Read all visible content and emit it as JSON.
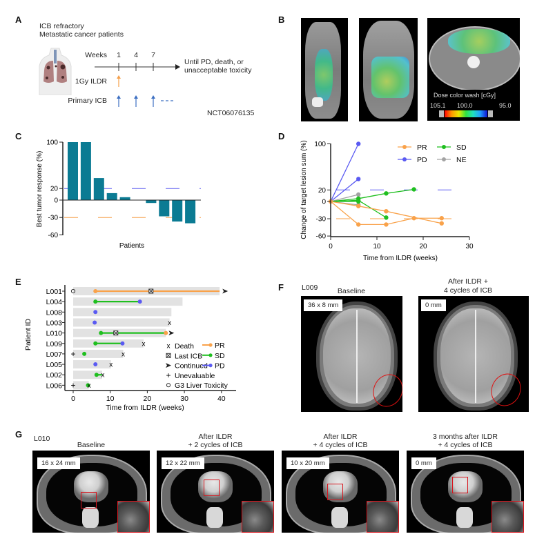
{
  "panels": {
    "A": {
      "label": "A",
      "title_lines": [
        "ICB refractory",
        "Metastatic cancer patients"
      ],
      "weeks_label": "Weeks",
      "week_ticks": [
        "1",
        "4",
        "7"
      ],
      "endpoint_lines": [
        "Until PD, death, or",
        "unacceptable toxicity"
      ],
      "ildr_label": "1Gy ILDR",
      "icb_label": "Primary ICB",
      "trial_id": "NCT06076135",
      "colors": {
        "ildr": "#f5a04a",
        "icb": "#3c6fc2"
      }
    },
    "B": {
      "label": "B",
      "dose_legend_title": "Dose color wash [cGy]",
      "dose_ticks": [
        "105.1",
        "100.0",
        "95.0"
      ]
    },
    "C": {
      "label": "C"
    },
    "D": {
      "label": "D"
    },
    "E": {
      "label": "E"
    },
    "F": {
      "label": "F",
      "patient": "L009",
      "images": [
        {
          "title_lines": [
            "Baseline"
          ],
          "measurement": "36 x 8 mm"
        },
        {
          "title_lines": [
            "After ILDR +",
            "4 cycles of ICB"
          ],
          "measurement": "0 mm"
        }
      ]
    },
    "G": {
      "label": "G",
      "patient": "L010",
      "images": [
        {
          "title_lines": [
            "",
            "Baseline"
          ],
          "measurement": "16 x 24 mm"
        },
        {
          "title_lines": [
            "After ILDR",
            "+ 2 cycles of ICB"
          ],
          "measurement": "12 x 22 mm"
        },
        {
          "title_lines": [
            "After ILDR",
            "+ 4 cycles of ICB"
          ],
          "measurement": "10 x 20 mm"
        },
        {
          "title_lines": [
            "3 months after ILDR",
            "+ 4 cycles of ICB"
          ],
          "measurement": "0 mm"
        }
      ]
    }
  },
  "chart_data": [
    {
      "id": "C",
      "type": "bar",
      "title": "",
      "xlabel": "Patients",
      "ylabel": "Best tumor response (%)",
      "ylim": [
        -60,
        100
      ],
      "yticks": [
        100,
        20,
        0,
        -30,
        -60
      ],
      "values": [
        100,
        100,
        38,
        12,
        5,
        0,
        -5,
        -28,
        -37,
        -40
      ],
      "bar_color": "#0b7b93",
      "reference_lines": [
        {
          "value": 20,
          "color": "#5a5af0"
        },
        {
          "value": -30,
          "color": "#f5a04a"
        }
      ],
      "grid": false
    },
    {
      "id": "D",
      "type": "line",
      "title": "",
      "xlabel": "Time from ILDR (weeks)",
      "ylabel": "Change of target lesion sum (%)",
      "xlim": [
        0,
        30
      ],
      "ylim": [
        -60,
        100
      ],
      "xticks": [
        0,
        10,
        20,
        30
      ],
      "yticks": [
        100,
        20,
        0,
        -30,
        -60
      ],
      "legend_position": "top-right",
      "legend": [
        {
          "name": "PR",
          "color": "#f9a24a"
        },
        {
          "name": "SD",
          "color": "#1fbf1f"
        },
        {
          "name": "PD",
          "color": "#5a5af2"
        },
        {
          "name": "NE",
          "color": "#a3a3a3"
        }
      ],
      "reference_lines": [
        {
          "value": 20,
          "color": "#5a5af2"
        },
        {
          "value": -30,
          "color": "#f9a24a"
        }
      ],
      "series": [
        {
          "name": "PD",
          "x": [
            0,
            6
          ],
          "y": [
            0,
            100
          ]
        },
        {
          "name": "PD",
          "x": [
            0,
            6
          ],
          "y": [
            0,
            39
          ]
        },
        {
          "name": "NE",
          "x": [
            0,
            6
          ],
          "y": [
            0,
            12
          ]
        },
        {
          "name": "NE",
          "x": [
            0,
            6
          ],
          "y": [
            0,
            -6
          ]
        },
        {
          "name": "SD",
          "x": [
            0,
            6,
            12,
            18
          ],
          "y": [
            0,
            5,
            14,
            21
          ]
        },
        {
          "name": "SD",
          "x": [
            0,
            6,
            12
          ],
          "y": [
            0,
            2,
            -28
          ]
        },
        {
          "name": "SD",
          "x": [
            0,
            6
          ],
          "y": [
            0,
            0
          ]
        },
        {
          "name": "PR",
          "x": [
            0,
            6,
            12,
            24
          ],
          "y": [
            0,
            -8,
            -17,
            -38
          ]
        },
        {
          "name": "PR",
          "x": [
            0,
            6,
            12,
            18,
            24
          ],
          "y": [
            0,
            -40,
            -40,
            -29,
            -29
          ]
        }
      ]
    },
    {
      "id": "E",
      "type": "bar",
      "orientation": "horizontal",
      "title": "",
      "xlabel": "Time from ILDR (weeks)",
      "ylabel": "Patient ID",
      "xlim": [
        0,
        42
      ],
      "xticks": [
        0,
        10,
        20,
        30,
        40
      ],
      "response_colors": {
        "PR": "#f9a24a",
        "SD": "#1fbf1f",
        "PD": "#5a5af2"
      },
      "legend_symbols": [
        {
          "type": "death",
          "label": "Death"
        },
        {
          "type": "last_icb",
          "label": "Last ICB"
        },
        {
          "type": "continued",
          "label": "Continued"
        },
        {
          "type": "unevaluable",
          "label": "Unevaluable"
        },
        {
          "type": "g3_liver_toxicity",
          "label": "G3 Liver Toxicity"
        }
      ],
      "legend_responses": [
        "PR",
        "SD",
        "PD"
      ],
      "patients": [
        {
          "id": "L001",
          "duration": 39.5,
          "segments": [
            {
              "from": 6,
              "to": 39.5,
              "response": "PR"
            }
          ],
          "dots": [
            {
              "t": 6,
              "response": "PR"
            }
          ],
          "events": [
            {
              "type": "g3_liver_toxicity",
              "t": 0
            },
            {
              "type": "last_icb",
              "t": 21
            },
            {
              "type": "continued",
              "t": 41
            }
          ]
        },
        {
          "id": "L004",
          "duration": 29.5,
          "segments": [
            {
              "from": 6,
              "to": 18,
              "response": "SD"
            }
          ],
          "dots": [
            {
              "t": 6,
              "response": "SD"
            },
            {
              "t": 18,
              "response": "PD"
            }
          ],
          "events": []
        },
        {
          "id": "L008",
          "duration": 26.5,
          "segments": [],
          "dots": [
            {
              "t": 6,
              "response": "PD"
            }
          ],
          "events": []
        },
        {
          "id": "L003",
          "duration": 26,
          "segments": [],
          "dots": [
            {
              "t": 5.8,
              "response": "PD"
            }
          ],
          "events": [
            {
              "type": "death",
              "t": 26
            }
          ]
        },
        {
          "id": "L010",
          "duration": 25,
          "segments": [
            {
              "from": 7.5,
              "to": 25,
              "response": "SD"
            }
          ],
          "dots": [
            {
              "t": 7.5,
              "response": "SD"
            },
            {
              "t": 25,
              "response": "PR"
            }
          ],
          "events": [
            {
              "type": "last_icb",
              "t": 11.5
            },
            {
              "type": "continued",
              "t": 26.5
            }
          ]
        },
        {
          "id": "L009",
          "duration": 19,
          "segments": [
            {
              "from": 6,
              "to": 13.3,
              "response": "SD"
            }
          ],
          "dots": [
            {
              "t": 6,
              "response": "SD"
            },
            {
              "t": 13.3,
              "response": "PD"
            }
          ],
          "events": [
            {
              "type": "death",
              "t": 19
            }
          ]
        },
        {
          "id": "L007",
          "duration": 13.5,
          "segments": [],
          "dots": [
            {
              "t": 3,
              "response": "SD"
            }
          ],
          "events": [
            {
              "type": "unevaluable",
              "t": 0
            },
            {
              "type": "death",
              "t": 13.5
            }
          ]
        },
        {
          "id": "L005",
          "duration": 10.2,
          "segments": [],
          "dots": [
            {
              "t": 6,
              "response": "PD"
            }
          ],
          "events": [
            {
              "type": "death",
              "t": 10.2
            }
          ]
        },
        {
          "id": "L002",
          "duration": 7.8,
          "segments": [
            {
              "from": 6.3,
              "to": 7.8,
              "response": "SD"
            }
          ],
          "dots": [
            {
              "t": 6.3,
              "response": "SD"
            }
          ],
          "events": [
            {
              "type": "death",
              "t": 8
            }
          ]
        },
        {
          "id": "L006",
          "duration": 4.2,
          "segments": [],
          "dots": [
            {
              "t": 4,
              "response": "SD"
            }
          ],
          "events": [
            {
              "type": "unevaluable",
              "t": 0
            },
            {
              "type": "death",
              "t": 4.3
            }
          ]
        }
      ]
    }
  ]
}
